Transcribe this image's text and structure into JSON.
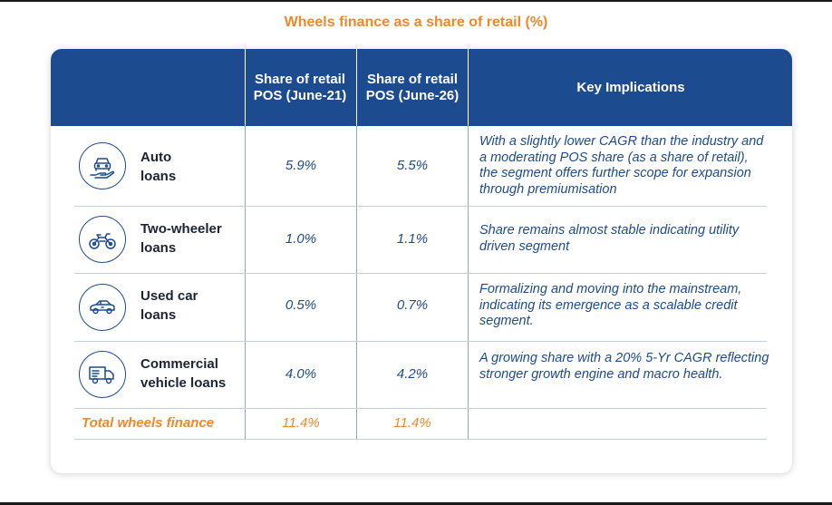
{
  "title": "Wheels finance as a share of retail (%)",
  "columns": {
    "col1": "Share of retail POS (June-21)",
    "col2": "Share of retail POS (June-26)",
    "col3": "Key Implications"
  },
  "rows": [
    {
      "label_line1": "Auto",
      "label_line2": "loans",
      "icon": "car-hand-icon",
      "june21": "5.9%",
      "june26": "5.5%",
      "implication": "With a slightly lower CAGR than the industry and a moderating POS share (as a share of retail), the segment offers further scope for expansion through premiumisation"
    },
    {
      "label_line1": "Two-wheeler",
      "label_line2": "loans",
      "icon": "motorcycle-icon",
      "june21": "1.0%",
      "june26": "1.1%",
      "implication": "Share remains almost stable indicating utility driven segment"
    },
    {
      "label_line1": "Used car",
      "label_line2": "loans",
      "icon": "used-car-icon",
      "june21": "0.5%",
      "june26": "0.7%",
      "implication": "Formalizing and moving into the mainstream, indicating its emergence as a scalable credit segment."
    },
    {
      "label_line1": "Commercial",
      "label_line2": "vehicle loans",
      "icon": "truck-icon",
      "june21": "4.0%",
      "june26": "4.2%",
      "implication": "A growing share with a 20% 5-Yr CAGR reflecting stronger growth engine and macro health."
    }
  ],
  "total": {
    "label": "Total wheels finance",
    "june21": "11.4%",
    "june26": "11.4%"
  },
  "colors": {
    "header": "#1d4b8f",
    "accent": "#f0882a",
    "text_blue": "#1d4b8f"
  }
}
